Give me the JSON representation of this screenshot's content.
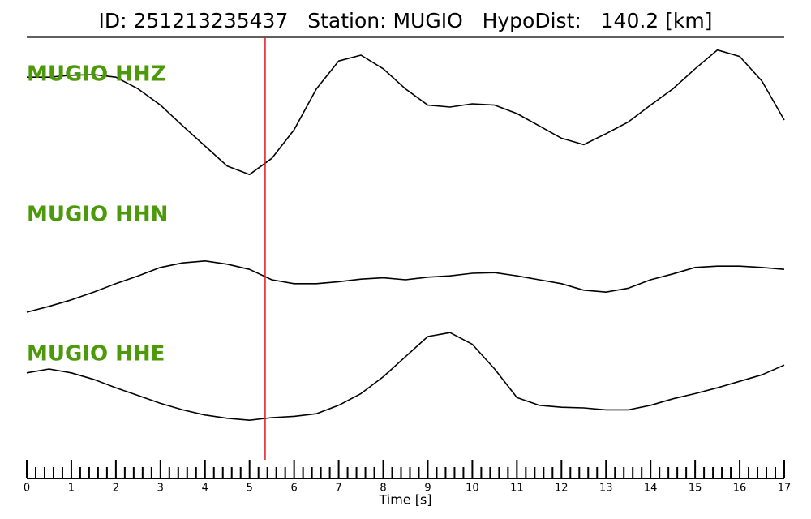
{
  "chart_data": {
    "type": "line",
    "title": "ID: 251213235437   Station: MUGIO   HypoDist:   140.2 [km]",
    "xlabel": "Time [s]",
    "x": [
      0,
      0.5,
      1,
      1.5,
      2,
      2.5,
      3,
      3.5,
      4,
      4.5,
      5,
      5.5,
      6,
      6.5,
      7,
      7.5,
      8,
      8.5,
      9,
      9.5,
      10,
      10.5,
      11,
      11.5,
      12,
      12.5,
      13,
      13.5,
      14,
      14.5,
      15,
      15.5,
      16,
      16.5,
      17
    ],
    "xlim": [
      0,
      17
    ],
    "xticks": [
      0,
      1,
      2,
      3,
      4,
      5,
      6,
      7,
      8,
      9,
      10,
      11,
      12,
      13,
      14,
      15,
      16,
      17
    ],
    "minor_ticks_per_major": 5,
    "ylim": [
      -1,
      1
    ],
    "pick_time": 5.35,
    "pick_color": "#e8141b",
    "label_color": "#4c9a0a",
    "series": [
      {
        "name": "MUGIO HHZ",
        "color": "#000000",
        "values": [
          0.56,
          0.56,
          0.59,
          0.6,
          0.56,
          0.38,
          0.13,
          -0.19,
          -0.5,
          -0.81,
          -0.94,
          -0.69,
          -0.25,
          0.38,
          0.81,
          0.9,
          0.69,
          0.38,
          0.13,
          0.1,
          0.15,
          0.13,
          0,
          -0.19,
          -0.38,
          -0.48,
          -0.31,
          -0.13,
          0.13,
          0.38,
          0.69,
          0.98,
          0.88,
          0.5,
          -0.1
        ]
      },
      {
        "name": "MUGIO HHN",
        "color": "#000000",
        "values": [
          -0.5,
          -0.41,
          -0.31,
          -0.19,
          -0.06,
          0.06,
          0.19,
          0.26,
          0.29,
          0.24,
          0.16,
          0,
          -0.06,
          -0.06,
          -0.03,
          0.01,
          0.03,
          0,
          0.04,
          0.06,
          0.1,
          0.11,
          0.06,
          0,
          -0.06,
          -0.16,
          -0.19,
          -0.13,
          0,
          0.09,
          0.19,
          0.21,
          0.21,
          0.19,
          0.16
        ]
      },
      {
        "name": "MUGIO HHE",
        "color": "#000000",
        "values": [
          0.19,
          0.25,
          0.19,
          0.09,
          -0.04,
          -0.16,
          -0.28,
          -0.38,
          -0.46,
          -0.51,
          -0.54,
          -0.5,
          -0.48,
          -0.44,
          -0.31,
          -0.13,
          0.13,
          0.44,
          0.75,
          0.81,
          0.63,
          0.25,
          -0.19,
          -0.31,
          -0.34,
          -0.35,
          -0.38,
          -0.38,
          -0.31,
          -0.21,
          -0.13,
          -0.04,
          0.06,
          0.16,
          0.31
        ]
      }
    ]
  }
}
